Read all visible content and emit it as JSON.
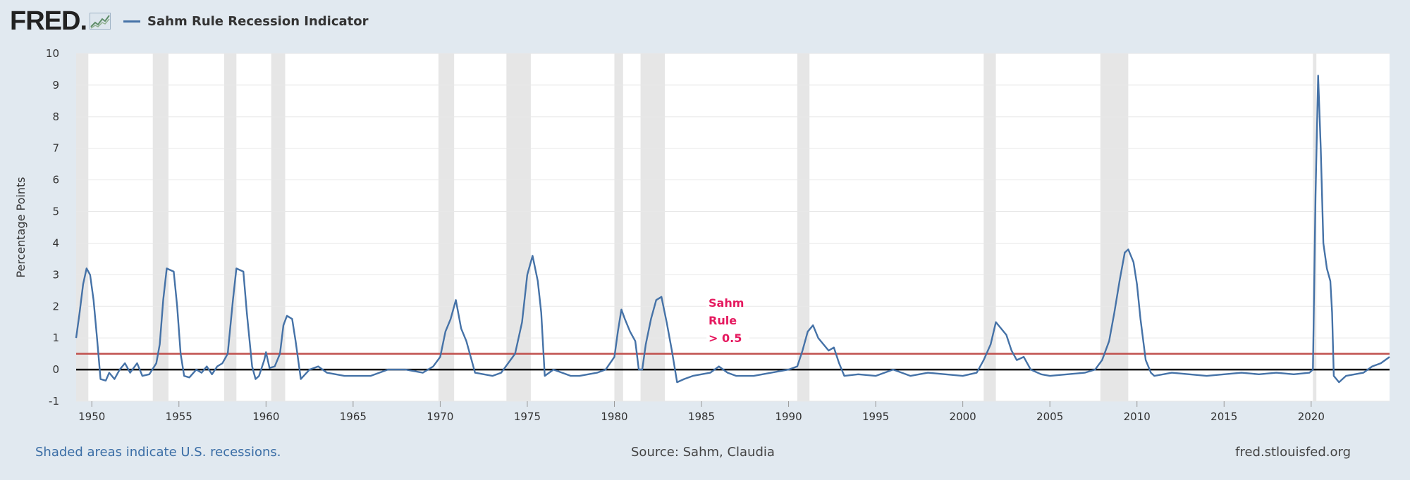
{
  "header": {
    "logo_text": "FRED",
    "logo_mark": ".",
    "legend_series_name": "Sahm Rule Recession Indicator"
  },
  "colors": {
    "series": "#4572a7",
    "threshold": "#c0504d",
    "zero_line": "#000000",
    "recession_shade": "#e6e6e6",
    "annotation": "#e5195f",
    "background": "#e1e9f0",
    "plot_background": "#ffffff"
  },
  "footer": {
    "note": "Shaded areas indicate U.S. recessions.",
    "source": "Source: Sahm, Claudia",
    "url": "fred.stlouisfed.org"
  },
  "chart_data": {
    "type": "line",
    "title": "",
    "xlabel": "",
    "ylabel": "Percentage Points",
    "xlim": [
      1949.1,
      2024.5
    ],
    "ylim": [
      -1,
      10
    ],
    "x_ticks": [
      1950,
      1955,
      1960,
      1965,
      1970,
      1975,
      1980,
      1985,
      1990,
      1995,
      2000,
      2005,
      2010,
      2015,
      2020
    ],
    "y_ticks": [
      -1,
      0,
      1,
      2,
      3,
      4,
      5,
      6,
      7,
      8,
      9,
      10
    ],
    "grid": "horizontal",
    "legend": "top-left",
    "recessions": [
      [
        1948.9,
        1949.8
      ],
      [
        1953.5,
        1954.4
      ],
      [
        1957.6,
        1958.3
      ],
      [
        1960.3,
        1961.1
      ],
      [
        1969.9,
        1970.8
      ],
      [
        1973.8,
        1975.2
      ],
      [
        1980.0,
        1980.5
      ],
      [
        1981.5,
        1982.9
      ],
      [
        1990.5,
        1991.2
      ],
      [
        2001.2,
        2001.9
      ],
      [
        2007.9,
        2009.5
      ],
      [
        2020.1,
        2020.3
      ]
    ],
    "reference_lines": [
      {
        "y": 0.5,
        "label": [
          "Sahm",
          "Rule",
          "> 0.5"
        ]
      },
      {
        "y": 0
      }
    ],
    "series": [
      {
        "name": "Sahm Rule Recession Indicator",
        "points": [
          [
            1949.1,
            1.0
          ],
          [
            1949.3,
            1.8
          ],
          [
            1949.5,
            2.7
          ],
          [
            1949.7,
            3.2
          ],
          [
            1949.9,
            3.0
          ],
          [
            1950.1,
            2.2
          ],
          [
            1950.3,
            1.0
          ],
          [
            1950.5,
            -0.3
          ],
          [
            1950.8,
            -0.35
          ],
          [
            1951.0,
            -0.1
          ],
          [
            1951.3,
            -0.3
          ],
          [
            1951.6,
            0.0
          ],
          [
            1951.9,
            0.2
          ],
          [
            1952.2,
            -0.1
          ],
          [
            1952.6,
            0.2
          ],
          [
            1952.9,
            -0.2
          ],
          [
            1953.3,
            -0.15
          ],
          [
            1953.7,
            0.2
          ],
          [
            1953.9,
            0.8
          ],
          [
            1954.1,
            2.2
          ],
          [
            1954.3,
            3.2
          ],
          [
            1954.7,
            3.1
          ],
          [
            1954.9,
            2.0
          ],
          [
            1955.1,
            0.5
          ],
          [
            1955.3,
            -0.2
          ],
          [
            1955.6,
            -0.25
          ],
          [
            1956.0,
            0.0
          ],
          [
            1956.3,
            -0.1
          ],
          [
            1956.6,
            0.1
          ],
          [
            1956.9,
            -0.15
          ],
          [
            1957.2,
            0.1
          ],
          [
            1957.5,
            0.2
          ],
          [
            1957.8,
            0.5
          ],
          [
            1958.1,
            2.2
          ],
          [
            1958.3,
            3.2
          ],
          [
            1958.7,
            3.1
          ],
          [
            1958.9,
            1.8
          ],
          [
            1959.2,
            0.1
          ],
          [
            1959.4,
            -0.3
          ],
          [
            1959.6,
            -0.2
          ],
          [
            1959.9,
            0.3
          ],
          [
            1960.0,
            0.55
          ],
          [
            1960.2,
            0.05
          ],
          [
            1960.5,
            0.1
          ],
          [
            1960.8,
            0.5
          ],
          [
            1961.0,
            1.4
          ],
          [
            1961.2,
            1.7
          ],
          [
            1961.5,
            1.6
          ],
          [
            1961.7,
            0.9
          ],
          [
            1962.0,
            -0.3
          ],
          [
            1962.5,
            0.0
          ],
          [
            1963.0,
            0.1
          ],
          [
            1963.5,
            -0.1
          ],
          [
            1964.0,
            -0.15
          ],
          [
            1964.5,
            -0.2
          ],
          [
            1965.0,
            -0.2
          ],
          [
            1966.0,
            -0.2
          ],
          [
            1967.0,
            0.0
          ],
          [
            1968.0,
            0.0
          ],
          [
            1969.0,
            -0.1
          ],
          [
            1969.6,
            0.1
          ],
          [
            1970.0,
            0.4
          ],
          [
            1970.3,
            1.2
          ],
          [
            1970.6,
            1.6
          ],
          [
            1970.9,
            2.2
          ],
          [
            1971.2,
            1.3
          ],
          [
            1971.5,
            0.9
          ],
          [
            1971.8,
            0.3
          ],
          [
            1972.0,
            -0.1
          ],
          [
            1972.5,
            -0.15
          ],
          [
            1973.0,
            -0.2
          ],
          [
            1973.5,
            -0.1
          ],
          [
            1973.9,
            0.2
          ],
          [
            1974.3,
            0.5
          ],
          [
            1974.7,
            1.5
          ],
          [
            1975.0,
            3.0
          ],
          [
            1975.3,
            3.6
          ],
          [
            1975.6,
            2.8
          ],
          [
            1975.8,
            1.8
          ],
          [
            1976.0,
            -0.2
          ],
          [
            1976.5,
            0.0
          ],
          [
            1977.0,
            -0.1
          ],
          [
            1977.5,
            -0.2
          ],
          [
            1978.0,
            -0.2
          ],
          [
            1978.5,
            -0.15
          ],
          [
            1979.0,
            -0.1
          ],
          [
            1979.5,
            0.0
          ],
          [
            1980.0,
            0.4
          ],
          [
            1980.2,
            1.2
          ],
          [
            1980.4,
            1.9
          ],
          [
            1980.6,
            1.6
          ],
          [
            1980.9,
            1.2
          ],
          [
            1981.2,
            0.9
          ],
          [
            1981.4,
            0.0
          ],
          [
            1981.6,
            0.0
          ],
          [
            1981.8,
            0.8
          ],
          [
            1982.1,
            1.6
          ],
          [
            1982.4,
            2.2
          ],
          [
            1982.7,
            2.3
          ],
          [
            1983.0,
            1.5
          ],
          [
            1983.3,
            0.6
          ],
          [
            1983.6,
            -0.4
          ],
          [
            1984.0,
            -0.3
          ],
          [
            1984.5,
            -0.2
          ],
          [
            1985.0,
            -0.15
          ],
          [
            1985.5,
            -0.1
          ],
          [
            1986.0,
            0.1
          ],
          [
            1986.5,
            -0.1
          ],
          [
            1987.0,
            -0.2
          ],
          [
            1988.0,
            -0.2
          ],
          [
            1989.0,
            -0.1
          ],
          [
            1990.0,
            0.0
          ],
          [
            1990.5,
            0.1
          ],
          [
            1990.8,
            0.6
          ],
          [
            1991.1,
            1.2
          ],
          [
            1991.4,
            1.4
          ],
          [
            1991.7,
            1.0
          ],
          [
            1992.0,
            0.8
          ],
          [
            1992.3,
            0.6
          ],
          [
            1992.6,
            0.7
          ],
          [
            1992.9,
            0.2
          ],
          [
            1993.2,
            -0.2
          ],
          [
            1994.0,
            -0.15
          ],
          [
            1995.0,
            -0.2
          ],
          [
            1996.0,
            0.0
          ],
          [
            1997.0,
            -0.2
          ],
          [
            1998.0,
            -0.1
          ],
          [
            1999.0,
            -0.15
          ],
          [
            2000.0,
            -0.2
          ],
          [
            2000.8,
            -0.1
          ],
          [
            2001.2,
            0.3
          ],
          [
            2001.6,
            0.8
          ],
          [
            2001.9,
            1.5
          ],
          [
            2002.2,
            1.3
          ],
          [
            2002.5,
            1.1
          ],
          [
            2002.8,
            0.6
          ],
          [
            2003.1,
            0.3
          ],
          [
            2003.5,
            0.4
          ],
          [
            2003.9,
            0.0
          ],
          [
            2004.5,
            -0.15
          ],
          [
            2005.0,
            -0.2
          ],
          [
            2006.0,
            -0.15
          ],
          [
            2007.0,
            -0.1
          ],
          [
            2007.6,
            0.0
          ],
          [
            2008.0,
            0.3
          ],
          [
            2008.4,
            0.9
          ],
          [
            2008.7,
            1.8
          ],
          [
            2009.0,
            2.8
          ],
          [
            2009.3,
            3.7
          ],
          [
            2009.5,
            3.8
          ],
          [
            2009.8,
            3.4
          ],
          [
            2010.0,
            2.7
          ],
          [
            2010.2,
            1.6
          ],
          [
            2010.5,
            0.3
          ],
          [
            2010.8,
            -0.1
          ],
          [
            2011.0,
            -0.2
          ],
          [
            2012.0,
            -0.1
          ],
          [
            2013.0,
            -0.15
          ],
          [
            2014.0,
            -0.2
          ],
          [
            2015.0,
            -0.15
          ],
          [
            2016.0,
            -0.1
          ],
          [
            2017.0,
            -0.15
          ],
          [
            2018.0,
            -0.1
          ],
          [
            2019.0,
            -0.15
          ],
          [
            2019.9,
            -0.1
          ],
          [
            2020.1,
            0.0
          ],
          [
            2020.25,
            5.5
          ],
          [
            2020.4,
            9.3
          ],
          [
            2020.55,
            7.0
          ],
          [
            2020.7,
            4.0
          ],
          [
            2020.9,
            3.2
          ],
          [
            2021.1,
            2.8
          ],
          [
            2021.2,
            1.8
          ],
          [
            2021.3,
            -0.2
          ],
          [
            2021.6,
            -0.4
          ],
          [
            2022.0,
            -0.2
          ],
          [
            2022.5,
            -0.15
          ],
          [
            2023.0,
            -0.1
          ],
          [
            2023.5,
            0.1
          ],
          [
            2024.0,
            0.2
          ],
          [
            2024.5,
            0.4
          ]
        ]
      }
    ]
  }
}
